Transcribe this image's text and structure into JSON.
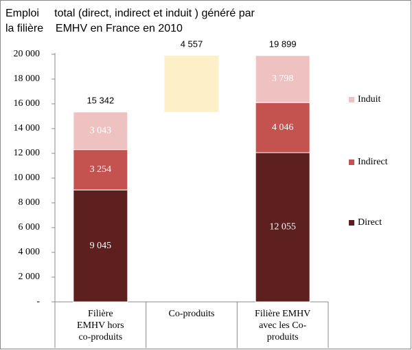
{
  "chart_data": {
    "type": "stacked-bar",
    "title": [
      "Emploi     total (direct, indirect et induit ) généré par",
      "la filière    EMHV en France en 2010"
    ],
    "categories": [
      [
        "Filière",
        "EMHV hors",
        "co-produits"
      ],
      [
        "Co-produits"
      ],
      [
        "Filière EMHV",
        "avec les Co-",
        "produits"
      ]
    ],
    "series": [
      {
        "name": "Direct",
        "color": "#5e1f1f",
        "values": [
          9045,
          null,
          12055
        ],
        "value_labels": [
          "9 045",
          null,
          "12 055"
        ]
      },
      {
        "name": "Indirect",
        "color": "#c4534f",
        "values": [
          3254,
          null,
          4046
        ],
        "value_labels": [
          "3 254",
          null,
          "4 046"
        ]
      },
      {
        "name": "Induit",
        "color": "#efc2c2",
        "values": [
          3043,
          null,
          3798
        ],
        "value_labels": [
          "3 043",
          null,
          "3 798"
        ]
      }
    ],
    "waterfall": {
      "color": "#fdf0c8",
      "values": [
        null,
        4557,
        null
      ]
    },
    "totals": {
      "values": [
        15342,
        4557,
        19899
      ],
      "value_labels": [
        "15 342",
        "4 557",
        "19 899"
      ]
    },
    "ylim": [
      0,
      20000
    ],
    "yticks": [
      {
        "value": 0,
        "label": "-"
      },
      {
        "value": 2000,
        "label": "2 000"
      },
      {
        "value": 4000,
        "label": "4 000"
      },
      {
        "value": 6000,
        "label": "6 000"
      },
      {
        "value": 8000,
        "label": "8 000"
      },
      {
        "value": 10000,
        "label": "10 000"
      },
      {
        "value": 12000,
        "label": "12 000"
      },
      {
        "value": 14000,
        "label": "14 000"
      },
      {
        "value": 16000,
        "label": "16 000"
      },
      {
        "value": 18000,
        "label": "18 000"
      },
      {
        "value": 20000,
        "label": "20 000"
      }
    ],
    "legend": "right"
  }
}
